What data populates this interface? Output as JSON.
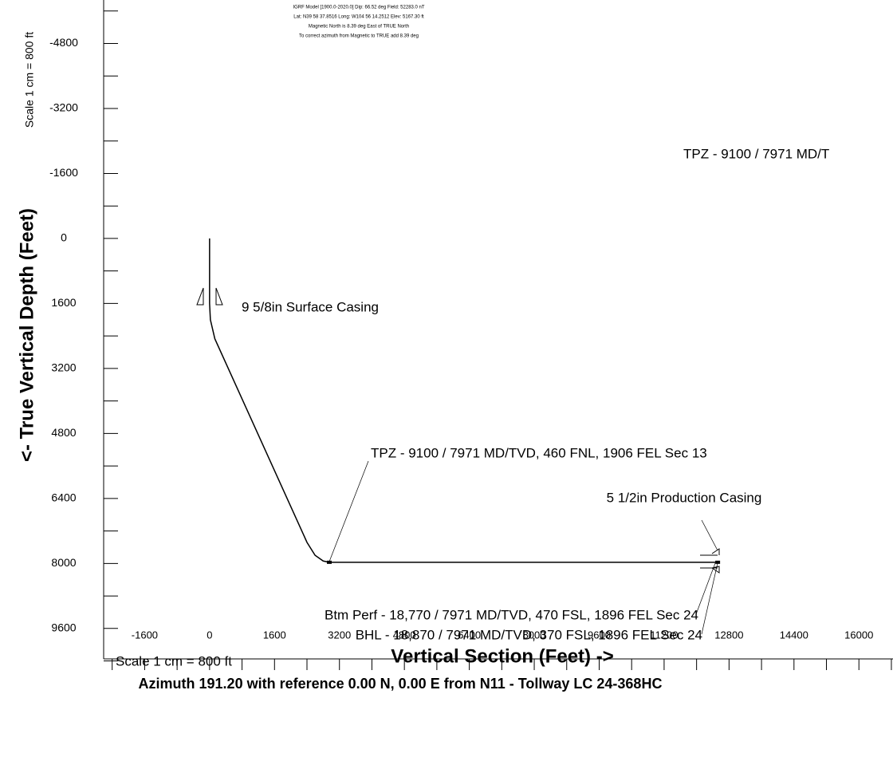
{
  "chart_data": {
    "type": "line",
    "header": [
      "IGRF Model [1900.0-2020.0] Dip: 66.52 deg Field: 52283.0 nT",
      "Lat: N39 58 37.8516 Long: W104 56 14.2512 Elev: 5167.30 ft",
      "Magnetic North is 8.39 deg East of TRUE North",
      "To correct azimuth from Magnetic to TRUE add 8.39 deg"
    ],
    "x_label": "Vertical Section (Feet) ->",
    "y_label": "<- True Vertical Depth (Feet)",
    "x_scale_label": "Scale 1 cm = 800 ft",
    "y_scale_label": "Scale 1 cm = 800 ft",
    "subtitle": "Azimuth 191.20 with reference 0.00 N, 0.00 E from N11 - Tollway LC 24-368HC",
    "annotations": [
      "9 5/8in Surface Casing",
      "TPZ - 9100 / 7971 MD/TVD, 460 FNL, 1906 FEL Sec 13",
      "5 1/2in Production Casing",
      "Btm Perf - 18,770 / 7971 MD/TVD, 470 FSL, 1896 FEL Sec 24",
      "BHL - 18,870 / 7971 MD/TVD, 370 FSL, 1896 FEL Sec 24",
      "TPZ - 9100 / 7971 MD/T"
    ],
    "series": [
      {
        "name": "Well path",
        "color": "#000000",
        "x": [
          0,
          0,
          20,
          130,
          2400,
          2600,
          2800,
          2950,
          12520
        ],
        "values": [
          0,
          1600,
          2000,
          2470,
          7480,
          7800,
          7940,
          7971,
          7971
        ]
      }
    ],
    "xlim": [
      -2610,
      16840
    ],
    "ylim": [
      10350,
      -5870
    ],
    "xticks": [
      -1600,
      0,
      1600,
      3200,
      4800,
      6400,
      8000,
      9600,
      11200,
      12800,
      14400,
      16000
    ],
    "yticks": [
      -4800,
      -3200,
      -1600,
      0,
      1600,
      3200,
      4800,
      6400,
      8000,
      9600
    ],
    "xminorticks": [
      -2400,
      -800,
      800,
      2400,
      4000,
      5600,
      7200,
      8800,
      10400,
      12000,
      13600,
      15200,
      16800
    ],
    "yminorticks": [
      -5600,
      -4000,
      -2400,
      -800,
      800,
      2400,
      4000,
      5600,
      7200,
      8800,
      10400
    ]
  }
}
